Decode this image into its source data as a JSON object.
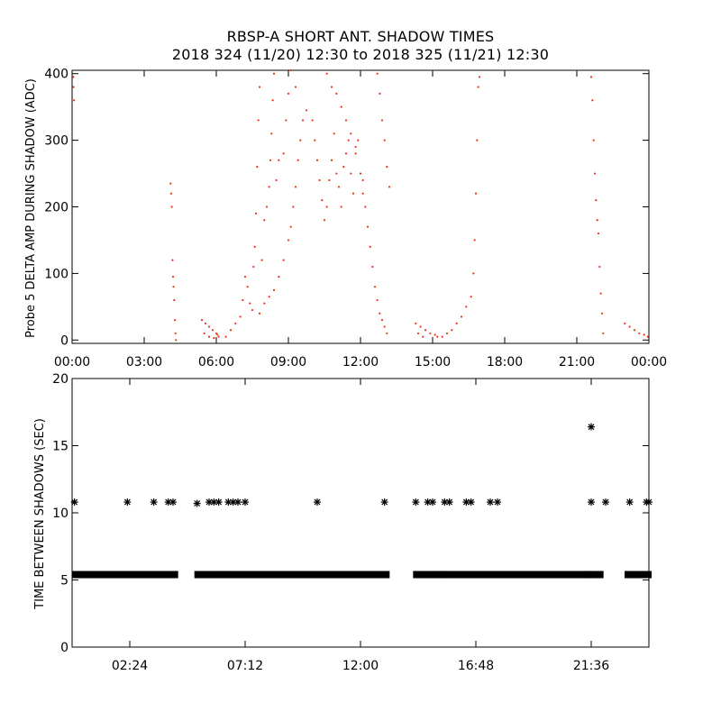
{
  "title": "RBSP-A SHORT ANT. SHADOW TIMES",
  "subtitle": "2018 324 (11/20) 12:30 to 2018 325 (11/21) 12:30",
  "colors": {
    "top_series": "#e8321e",
    "bottom_series": "#000000",
    "axis": "#000000"
  },
  "chart_data": [
    {
      "type": "scatter",
      "ylabel": "Probe 5 DELTA AMP DURING SHADOW (ADC)",
      "xlabel": "",
      "x_units": "hours",
      "xlim": [
        0,
        24
      ],
      "ylim": [
        -5,
        405
      ],
      "x_tick_values": [
        0,
        3,
        6,
        9,
        12,
        15,
        18,
        21,
        24
      ],
      "x_tick_labels": [
        "00:00",
        "03:00",
        "06:00",
        "09:00",
        "12:00",
        "15:00",
        "18:00",
        "21:00",
        "00:00"
      ],
      "y_tick_values": [
        0,
        100,
        200,
        300,
        400
      ],
      "y_tick_labels": [
        "0",
        "100",
        "200",
        "300",
        "400"
      ],
      "grid": false,
      "series": [
        {
          "marker": "dot",
          "color": "#e8321e",
          "points": [
            [
              0.05,
              395
            ],
            [
              0.06,
              380
            ],
            [
              0.08,
              360
            ],
            [
              4.1,
              235
            ],
            [
              4.12,
              220
            ],
            [
              4.15,
              200
            ],
            [
              4.18,
              120
            ],
            [
              4.2,
              95
            ],
            [
              4.22,
              80
            ],
            [
              4.25,
              60
            ],
            [
              4.28,
              30
            ],
            [
              4.3,
              10
            ],
            [
              4.32,
              0
            ],
            [
              5.4,
              30
            ],
            [
              5.55,
              25
            ],
            [
              5.7,
              20
            ],
            [
              5.85,
              15
            ],
            [
              6.0,
              10
            ],
            [
              6.1,
              5
            ],
            [
              5.5,
              10
            ],
            [
              5.7,
              5
            ],
            [
              5.9,
              3
            ],
            [
              6.05,
              8
            ],
            [
              6.4,
              5
            ],
            [
              6.6,
              15
            ],
            [
              6.8,
              25
            ],
            [
              7.0,
              35
            ],
            [
              7.1,
              60
            ],
            [
              7.2,
              95
            ],
            [
              7.3,
              80
            ],
            [
              7.4,
              55
            ],
            [
              7.5,
              45
            ],
            [
              7.55,
              110
            ],
            [
              7.6,
              140
            ],
            [
              7.65,
              190
            ],
            [
              7.7,
              260
            ],
            [
              7.75,
              330
            ],
            [
              7.8,
              380
            ],
            [
              7.9,
              120
            ],
            [
              8.0,
              180
            ],
            [
              8.1,
              200
            ],
            [
              8.2,
              230
            ],
            [
              8.25,
              270
            ],
            [
              8.3,
              310
            ],
            [
              8.35,
              360
            ],
            [
              8.4,
              400
            ],
            [
              8.5,
              240
            ],
            [
              8.6,
              270
            ],
            [
              7.8,
              40
            ],
            [
              8.0,
              55
            ],
            [
              8.2,
              65
            ],
            [
              8.4,
              75
            ],
            [
              8.6,
              95
            ],
            [
              8.8,
              120
            ],
            [
              9.0,
              150
            ],
            [
              9.1,
              170
            ],
            [
              9.2,
              200
            ],
            [
              9.3,
              230
            ],
            [
              9.4,
              270
            ],
            [
              9.5,
              300
            ],
            [
              9.6,
              330
            ],
            [
              9.75,
              345
            ],
            [
              8.8,
              280
            ],
            [
              8.9,
              330
            ],
            [
              9.0,
              370
            ],
            [
              9.1,
              405
            ],
            [
              9.3,
              380
            ],
            [
              10.0,
              330
            ],
            [
              10.1,
              300
            ],
            [
              10.2,
              270
            ],
            [
              10.3,
              240
            ],
            [
              10.4,
              210
            ],
            [
              10.5,
              180
            ],
            [
              10.6,
              200
            ],
            [
              10.7,
              240
            ],
            [
              10.8,
              270
            ],
            [
              10.9,
              310
            ],
            [
              11.0,
              250
            ],
            [
              11.1,
              230
            ],
            [
              11.2,
              200
            ],
            [
              11.3,
              260
            ],
            [
              11.4,
              280
            ],
            [
              11.5,
              300
            ],
            [
              11.6,
              250
            ],
            [
              11.7,
              220
            ],
            [
              11.8,
              280
            ],
            [
              11.9,
              300
            ],
            [
              12.0,
              250
            ],
            [
              12.1,
              220
            ],
            [
              10.6,
              400
            ],
            [
              10.8,
              380
            ],
            [
              11.0,
              370
            ],
            [
              11.2,
              350
            ],
            [
              11.4,
              330
            ],
            [
              11.6,
              310
            ],
            [
              11.8,
              290
            ],
            [
              12.0,
              250
            ],
            [
              12.1,
              240
            ],
            [
              12.2,
              200
            ],
            [
              12.3,
              170
            ],
            [
              12.4,
              140
            ],
            [
              12.5,
              110
            ],
            [
              12.6,
              80
            ],
            [
              12.7,
              60
            ],
            [
              12.8,
              40
            ],
            [
              12.9,
              30
            ],
            [
              13.0,
              20
            ],
            [
              13.1,
              10
            ],
            [
              12.7,
              400
            ],
            [
              12.8,
              370
            ],
            [
              12.9,
              330
            ],
            [
              13.0,
              300
            ],
            [
              13.1,
              260
            ],
            [
              13.2,
              230
            ],
            [
              14.3,
              25
            ],
            [
              14.5,
              20
            ],
            [
              14.7,
              15
            ],
            [
              14.9,
              10
            ],
            [
              15.1,
              8
            ],
            [
              15.2,
              5
            ],
            [
              14.4,
              10
            ],
            [
              14.6,
              5
            ],
            [
              15.4,
              5
            ],
            [
              15.6,
              10
            ],
            [
              15.8,
              15
            ],
            [
              16.0,
              25
            ],
            [
              16.2,
              35
            ],
            [
              16.4,
              50
            ],
            [
              16.6,
              65
            ],
            [
              16.7,
              100
            ],
            [
              16.75,
              150
            ],
            [
              16.8,
              220
            ],
            [
              16.85,
              300
            ],
            [
              16.9,
              380
            ],
            [
              16.95,
              395
            ],
            [
              21.6,
              395
            ],
            [
              21.65,
              360
            ],
            [
              21.7,
              300
            ],
            [
              21.75,
              250
            ],
            [
              21.8,
              210
            ],
            [
              21.85,
              180
            ],
            [
              21.9,
              160
            ],
            [
              21.95,
              110
            ],
            [
              22.0,
              70
            ],
            [
              22.05,
              40
            ],
            [
              22.1,
              10
            ],
            [
              23.0,
              25
            ],
            [
              23.2,
              20
            ],
            [
              23.4,
              15
            ],
            [
              23.6,
              10
            ],
            [
              23.8,
              8
            ],
            [
              23.95,
              5
            ]
          ]
        }
      ]
    },
    {
      "type": "scatter",
      "ylabel": "TIME BETWEEN SHADOWS (SEC)",
      "xlabel": "",
      "x_units": "hours",
      "xlim": [
        0,
        24
      ],
      "ylim": [
        0,
        20
      ],
      "x_tick_values": [
        2.4,
        7.2,
        12.0,
        16.8,
        21.6
      ],
      "x_tick_labels": [
        "02:24",
        "07:12",
        "12:00",
        "16:48",
        "21:36"
      ],
      "y_tick_values": [
        0,
        5,
        10,
        15,
        20
      ],
      "y_tick_labels": [
        "0",
        "5",
        "10",
        "15",
        "20"
      ],
      "grid": false,
      "series": [
        {
          "marker": "asterisk",
          "color": "#000000",
          "baseline_value": 5.4,
          "baseline_segments": [
            [
              0.1,
              4.3
            ],
            [
              5.2,
              6.2
            ],
            [
              6.4,
              13.1
            ],
            [
              14.3,
              15.3
            ],
            [
              15.4,
              21.5
            ],
            [
              21.5,
              22.0
            ],
            [
              23.1,
              24.0
            ]
          ],
          "points": [
            [
              0.1,
              10.8
            ],
            [
              2.3,
              10.8
            ],
            [
              3.4,
              10.8
            ],
            [
              4.0,
              10.8
            ],
            [
              4.2,
              10.8
            ],
            [
              5.2,
              10.7
            ],
            [
              5.7,
              10.8
            ],
            [
              5.9,
              10.8
            ],
            [
              6.1,
              10.8
            ],
            [
              6.5,
              10.8
            ],
            [
              6.7,
              10.8
            ],
            [
              6.9,
              10.8
            ],
            [
              7.2,
              10.8
            ],
            [
              10.2,
              10.8
            ],
            [
              13.0,
              10.8
            ],
            [
              14.3,
              10.8
            ],
            [
              14.8,
              10.8
            ],
            [
              15.0,
              10.8
            ],
            [
              15.5,
              10.8
            ],
            [
              15.7,
              10.8
            ],
            [
              16.4,
              10.8
            ],
            [
              16.6,
              10.8
            ],
            [
              17.4,
              10.8
            ],
            [
              17.7,
              10.8
            ],
            [
              21.6,
              16.4
            ],
            [
              21.6,
              10.8
            ],
            [
              22.2,
              10.8
            ],
            [
              23.2,
              10.8
            ],
            [
              23.9,
              10.8
            ],
            [
              24.0,
              10.8
            ]
          ]
        }
      ]
    }
  ]
}
